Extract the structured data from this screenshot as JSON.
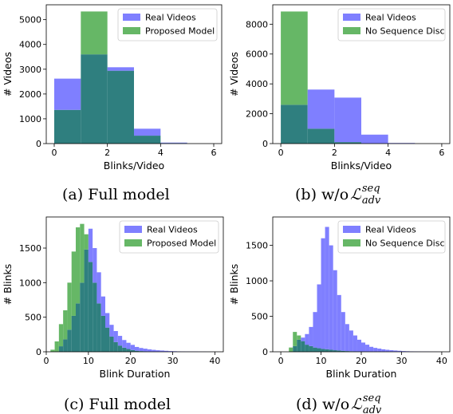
{
  "colors": {
    "real": "#7f7fff",
    "model": "#66b766",
    "overlap": "#2f7f7f"
  },
  "captions": [
    {
      "label": "(a)  Full model"
    },
    {
      "label": "(b)  w/o ",
      "math": "ℒ",
      "sup": "seq",
      "sub": "adv"
    },
    {
      "label": "(c)  Full model"
    },
    {
      "label": "(d)  w/o ",
      "math": "ℒ",
      "sup": "seq",
      "sub": "adv"
    }
  ],
  "chart_data": [
    {
      "type": "bar",
      "xlabel": "Blinks/Video",
      "ylabel": "# Videos",
      "xlim": [
        -0.3,
        6.3
      ],
      "ylim": [
        0,
        5600
      ],
      "xticks": [
        0,
        2,
        4,
        6
      ],
      "yticks": [
        0,
        1000,
        2000,
        3000,
        4000,
        5000
      ],
      "bin_width": 1,
      "bin_edges": [
        0,
        1,
        2,
        3,
        4,
        5,
        6
      ],
      "legend_position": "top-right",
      "series": [
        {
          "name": "Real Videos",
          "values": [
            2620,
            3600,
            3080,
            600,
            40,
            0
          ]
        },
        {
          "name": "Proposed Model",
          "values": [
            1360,
            5330,
            2940,
            320,
            20,
            0
          ]
        }
      ]
    },
    {
      "type": "bar",
      "xlabel": "Blinks/Video",
      "ylabel": "# Videos",
      "xlim": [
        -0.3,
        6.3
      ],
      "ylim": [
        0,
        9300
      ],
      "xticks": [
        0,
        2,
        4,
        6
      ],
      "yticks": [
        0,
        2000,
        4000,
        6000,
        8000
      ],
      "bin_width": 1,
      "bin_edges": [
        0,
        1,
        2,
        3,
        4,
        5,
        6
      ],
      "legend_position": "top-right",
      "series": [
        {
          "name": "Real Videos",
          "values": [
            2600,
            3620,
            3080,
            600,
            40,
            0
          ]
        },
        {
          "name": "No Sequence Disc",
          "values": [
            8850,
            1000,
            100,
            10,
            0,
            0
          ]
        }
      ]
    },
    {
      "type": "bar",
      "xlabel": "Blink Duration",
      "ylabel": "# Blinks",
      "xlim": [
        0,
        42
      ],
      "ylim": [
        0,
        1950
      ],
      "xticks": [
        0,
        10,
        20,
        30,
        40
      ],
      "yticks": [
        0,
        500,
        1000,
        1500
      ],
      "bin_width": 1,
      "bin_start": 1,
      "legend_position": "top-right",
      "series": [
        {
          "name": "Real Videos",
          "values": [
            0,
            5,
            80,
            180,
            320,
            520,
            700,
            1000,
            1480,
            1780,
            1500,
            1150,
            800,
            560,
            390,
            300,
            230,
            170,
            130,
            100,
            70,
            55,
            45,
            35,
            28,
            22,
            18,
            14,
            10,
            8,
            6,
            5,
            4,
            3,
            3,
            2,
            2,
            1,
            1
          ]
        },
        {
          "name": "Proposed Model",
          "values": [
            30,
            150,
            400,
            600,
            1000,
            1450,
            1800,
            1850,
            1700,
            1300,
            1000,
            700,
            520,
            350,
            220,
            140,
            90,
            60,
            40,
            25,
            15,
            10,
            5,
            3,
            0,
            0,
            0,
            0,
            0,
            0,
            0,
            0,
            0,
            0,
            0,
            0,
            0,
            0,
            0
          ]
        }
      ]
    },
    {
      "type": "bar",
      "xlabel": "Blink Duration",
      "ylabel": "# Blinks",
      "xlim": [
        -2,
        42
      ],
      "ylim": [
        0,
        1900
      ],
      "xticks": [
        0,
        10,
        20,
        30,
        40
      ],
      "yticks": [
        0,
        500,
        1000,
        1500
      ],
      "bin_width": 1,
      "bin_start": 1,
      "legend_position": "top-right",
      "series": [
        {
          "name": "Real Videos",
          "values": [
            0,
            5,
            80,
            170,
            200,
            250,
            350,
            560,
            950,
            1600,
            1760,
            1500,
            1150,
            800,
            560,
            390,
            300,
            230,
            170,
            130,
            100,
            70,
            55,
            45,
            35,
            28,
            22,
            18,
            14,
            10,
            8,
            6,
            5,
            4,
            3,
            3,
            2,
            2,
            1
          ]
        },
        {
          "name": "No Sequence Disc",
          "values": [
            0,
            60,
            280,
            230,
            150,
            100,
            80,
            60,
            50,
            40,
            35,
            28,
            22,
            18,
            14,
            10,
            8,
            6,
            4,
            3,
            2,
            1,
            0,
            0,
            0,
            0,
            0,
            0,
            0,
            0,
            0,
            0,
            0,
            0,
            0,
            0,
            0,
            0,
            0
          ]
        }
      ]
    }
  ]
}
